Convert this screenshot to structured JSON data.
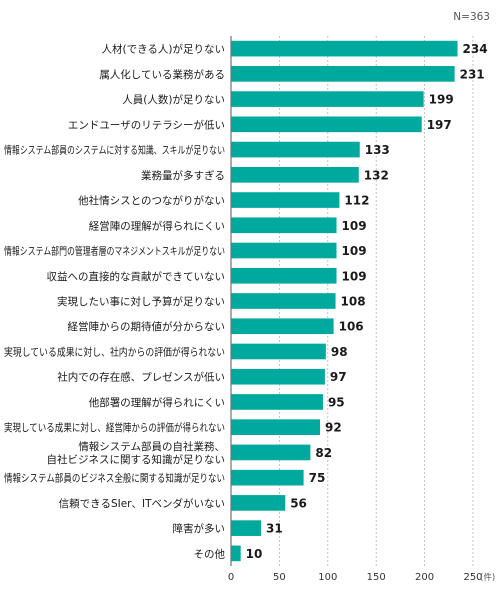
{
  "sample_note": "N=363",
  "chart_data": {
    "type": "bar",
    "orientation": "horizontal",
    "categories": [
      [
        "人材(できる人)が足りない"
      ],
      [
        "属人化している業務がある"
      ],
      [
        "人員(人数)が足りない"
      ],
      [
        "エンドユーザのリテラシーが低い"
      ],
      [
        "情報システム部員のシステムに対する知識、スキルが足りない"
      ],
      [
        "業務量が多すぎる"
      ],
      [
        "他社情シスとのつながりがない"
      ],
      [
        "経営陣の理解が得られにくい"
      ],
      [
        "情報システム部門の管理者層のマネジメントスキルが足りない"
      ],
      [
        "収益への直接的な貢献ができていない"
      ],
      [
        "実現したい事に対し予算が足りない"
      ],
      [
        "経営陣からの期待値が分からない"
      ],
      [
        "実現している成果に対し、社内からの評価が得られない"
      ],
      [
        "社内での存在感、プレゼンスが低い"
      ],
      [
        "他部署の理解が得られにくい"
      ],
      [
        "実現している成果に対し、経営陣からの評価が得られない"
      ],
      [
        "情報システム部員の自社業務、",
        "自社ビジネスに関する知識が足りない"
      ],
      [
        "情報システム部員のビジネス全般に関する知識が足りない"
      ],
      [
        "信頼できるSIer、ITベンダがいない"
      ],
      [
        "障害が多い"
      ],
      [
        "その他"
      ]
    ],
    "values": [
      234,
      231,
      199,
      197,
      133,
      132,
      112,
      109,
      109,
      109,
      108,
      106,
      98,
      97,
      95,
      92,
      82,
      75,
      56,
      31,
      10
    ],
    "xlim": [
      0,
      250
    ],
    "x_ticks": [
      "0",
      "50",
      "100",
      "150",
      "200",
      "250"
    ],
    "x_unit": "(件)",
    "grid": true,
    "bar_color": "#00A99D",
    "grid_color": "#b5b5b5"
  }
}
